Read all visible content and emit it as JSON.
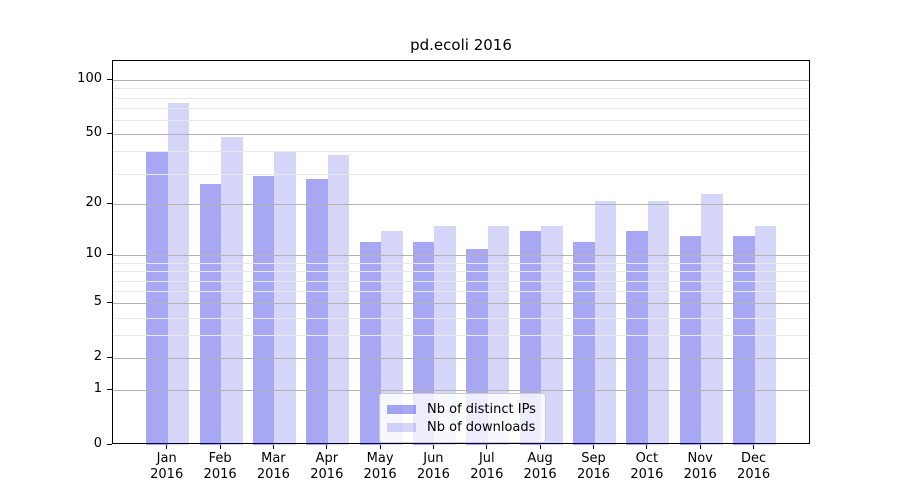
{
  "title": "pd.ecoli 2016",
  "chart_data": {
    "type": "bar",
    "title": "pd.ecoli 2016",
    "xlabel": "",
    "ylabel": "",
    "yscale": "log1p",
    "ylim": [
      0,
      127
    ],
    "grid": "on",
    "legend_position": "lower-center-inside",
    "y_major_ticks": [
      100,
      50,
      20,
      10,
      5,
      2,
      1,
      0
    ],
    "y_minor_gridlines": [
      90,
      80,
      70,
      60,
      40,
      30,
      9,
      8,
      7,
      6,
      4,
      3
    ],
    "categories": [
      {
        "month": "Jan",
        "year": "2016"
      },
      {
        "month": "Feb",
        "year": "2016"
      },
      {
        "month": "Mar",
        "year": "2016"
      },
      {
        "month": "Apr",
        "year": "2016"
      },
      {
        "month": "May",
        "year": "2016"
      },
      {
        "month": "Jun",
        "year": "2016"
      },
      {
        "month": "Jul",
        "year": "2016"
      },
      {
        "month": "Aug",
        "year": "2016"
      },
      {
        "month": "Sep",
        "year": "2016"
      },
      {
        "month": "Oct",
        "year": "2016"
      },
      {
        "month": "Nov",
        "year": "2016"
      },
      {
        "month": "Dec",
        "year": "2016"
      }
    ],
    "series": [
      {
        "name": "Nb of distinct IPs",
        "color": "rgba(2,2,222,0.35)",
        "values": [
          40,
          26,
          29,
          28,
          12,
          12,
          11,
          14,
          12,
          14,
          13,
          13
        ]
      },
      {
        "name": "Nb of downloads",
        "color": "rgba(2,2,222,0.16)",
        "values": [
          75,
          48,
          40,
          38,
          14,
          15,
          15,
          15,
          21,
          21,
          23,
          15
        ]
      }
    ]
  }
}
